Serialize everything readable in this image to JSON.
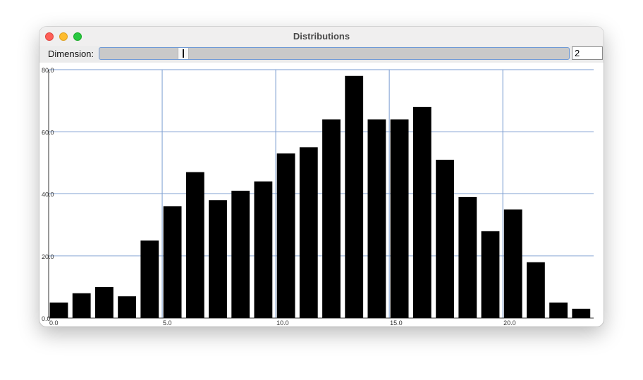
{
  "window": {
    "title": "Distributions"
  },
  "toolbar": {
    "dimension_label": "Dimension:",
    "dimension_value": "2",
    "slider_position": 0.17
  },
  "chart_data": {
    "type": "bar",
    "x": [
      0,
      1,
      2,
      3,
      4,
      5,
      6,
      7,
      8,
      9,
      10,
      11,
      12,
      13,
      14,
      15,
      16,
      17,
      18,
      19,
      20,
      21,
      22,
      23
    ],
    "values": [
      5,
      8,
      10,
      7,
      25,
      36,
      47,
      38,
      41,
      44,
      53,
      55,
      64,
      78,
      64,
      64,
      68,
      51,
      39,
      28,
      35,
      18,
      5,
      3
    ],
    "xlim": [
      0,
      24
    ],
    "ylim": [
      0,
      80
    ],
    "xticks": [
      0,
      5,
      10,
      15,
      20
    ],
    "yticks": [
      0,
      20,
      40,
      60,
      80
    ],
    "xtick_labels": [
      "0.0",
      "5.0",
      "10.0",
      "15.0",
      "20.0"
    ],
    "ytick_labels": [
      "0.0",
      "20.0",
      "40.0",
      "60.0",
      "80.0"
    ],
    "grid": true,
    "bar_color": "#000000",
    "grid_color": "#7a9cd0"
  }
}
